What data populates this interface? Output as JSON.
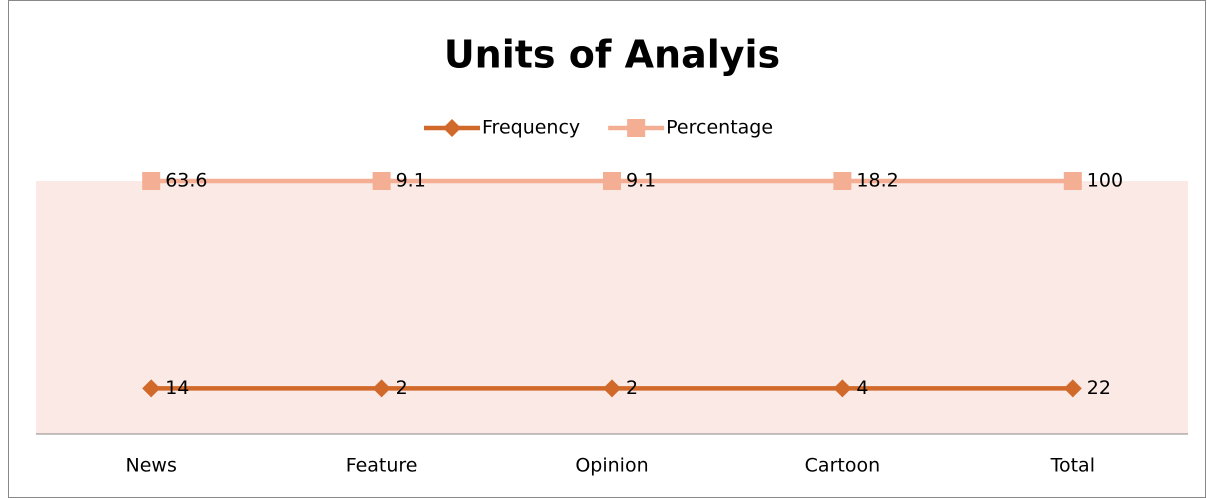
{
  "chart_data": {
    "type": "line",
    "stacking": "percent",
    "title": "Units of  Analyis",
    "categories": [
      "News",
      "Feature",
      "Opinion",
      "Cartoon",
      "Total"
    ],
    "series": [
      {
        "name": "Frequency",
        "color": "#d0692a",
        "marker": "diamond",
        "values": [
          14,
          2,
          2,
          4,
          22
        ]
      },
      {
        "name": "Percentage",
        "color": "#f4ae94",
        "marker": "square",
        "values": [
          63.6,
          9.1,
          9.1,
          18.2,
          100
        ]
      }
    ],
    "ylim": [
      0,
      100
    ],
    "legend": "top",
    "plot_background": "#fbe9e5"
  }
}
